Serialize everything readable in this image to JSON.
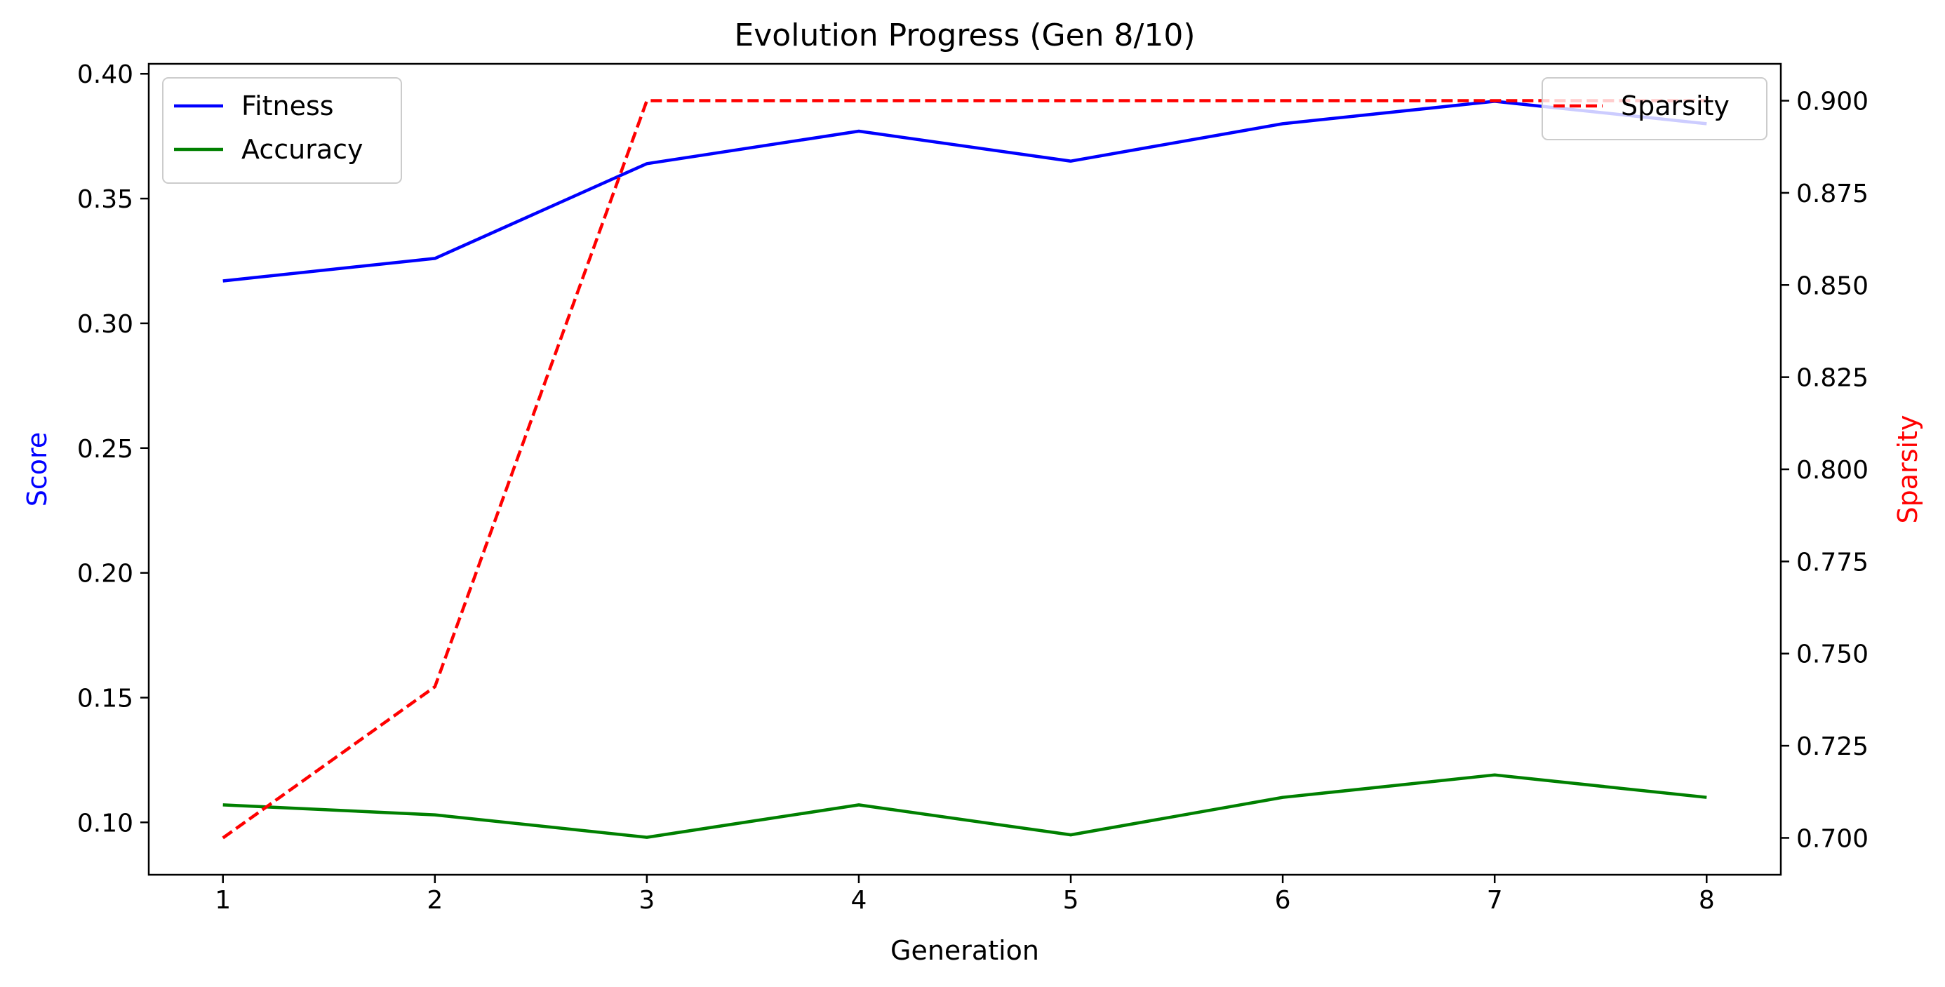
{
  "chart_data": {
    "type": "line",
    "title": "Evolution Progress (Gen 8/10)",
    "xlabel": "Generation",
    "ylabel": "Score",
    "y2label": "Sparsity",
    "x": [
      1,
      2,
      3,
      4,
      5,
      6,
      7,
      8
    ],
    "xlim": [
      0.65,
      8.35
    ],
    "ylim": [
      0.079,
      0.404
    ],
    "y2lim": [
      0.69,
      0.91
    ],
    "xticks": [
      "1",
      "2",
      "3",
      "4",
      "5",
      "6",
      "7",
      "8"
    ],
    "yticks": [
      "0.10",
      "0.15",
      "0.20",
      "0.25",
      "0.30",
      "0.35",
      "0.40"
    ],
    "y2ticks": [
      "0.700",
      "0.725",
      "0.750",
      "0.775",
      "0.800",
      "0.825",
      "0.850",
      "0.875",
      "0.900"
    ],
    "series": [
      {
        "name": "Fitness",
        "axis": "left",
        "color": "#0000ff",
        "dash": "solid",
        "values": [
          0.317,
          0.326,
          0.364,
          0.377,
          0.365,
          0.38,
          0.389,
          0.38
        ]
      },
      {
        "name": "Accuracy",
        "axis": "left",
        "color": "#008000",
        "dash": "solid",
        "values": [
          0.107,
          0.103,
          0.094,
          0.107,
          0.095,
          0.11,
          0.119,
          0.11
        ]
      },
      {
        "name": "Sparsity",
        "axis": "right",
        "color": "#ff0000",
        "dash": "dashed",
        "values": [
          0.7,
          0.741,
          0.9,
          0.9,
          0.9,
          0.9,
          0.9,
          0.9
        ]
      }
    ],
    "legends": [
      {
        "placement": "upper-left",
        "entries": [
          "Fitness",
          "Accuracy"
        ]
      },
      {
        "placement": "upper-right",
        "entries": [
          "Sparsity"
        ]
      }
    ],
    "ylabel_color": "#0000ff",
    "y2label_color": "#ff0000",
    "grid": false
  }
}
